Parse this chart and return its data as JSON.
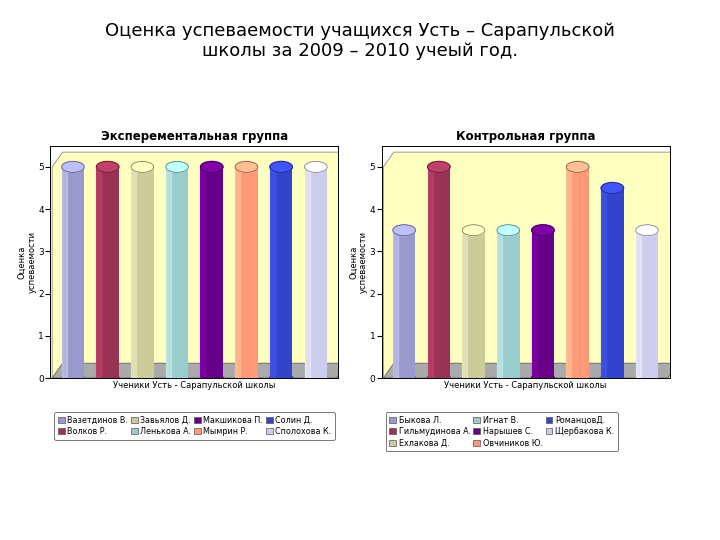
{
  "title": "Оценка успеваемости учащихся Усть – Сарапульской\nшколы за 2009 – 2010 учеый год.",
  "chart1": {
    "title": "Эксперементальная группа",
    "xlabel": "Ученики Усть - Сарапульской школы",
    "ylabel": "Оценка\nуспеваемости",
    "ylim": [
      0,
      5.5
    ],
    "yticks": [
      0,
      1,
      2,
      3,
      4,
      5
    ],
    "values": [
      5,
      5,
      5,
      5,
      5,
      5,
      5,
      5
    ],
    "colors": [
      "#9999CC",
      "#993355",
      "#CCCC99",
      "#99CCCC",
      "#660088",
      "#FF9977",
      "#3344CC",
      "#CCCCEE"
    ],
    "labels": [
      "Вазетдинов В.",
      "Волков Р.",
      "Завьялов Д.",
      "Ленькова А.",
      "Макшикова П.",
      "Мымрин Р.",
      "Солин Д.",
      "Сполохова К."
    ],
    "legend_ncol": 4,
    "legend_labels_row1": [
      "Вазетдинов В.",
      "Волков Р.",
      "Завьялов Д.",
      "Ленькова А."
    ],
    "legend_labels_row2": [
      "Макшикова П.",
      "Мымрин Р.",
      "Солин Д.",
      "Сполохова К."
    ]
  },
  "chart2": {
    "title": "Контрольная группа",
    "xlabel": "Ученики Усть - Сарапульской школы",
    "ylabel": "Оценка\nуспеваемости",
    "ylim": [
      0,
      5.5
    ],
    "yticks": [
      0,
      1,
      2,
      3,
      4,
      5
    ],
    "values": [
      3.5,
      5,
      3.5,
      3.5,
      3.5,
      5,
      4.5,
      3.5
    ],
    "colors": [
      "#9999CC",
      "#993355",
      "#CCCC99",
      "#99CCCC",
      "#660088",
      "#FF9977",
      "#3344CC",
      "#CCCCEE"
    ],
    "labels": [
      "Быкова Л.",
      "Гильмудинова А.",
      "Ехлакова Д.",
      "Игнат В.",
      "Нарышев С.",
      "Овчиников Ю.",
      "РоманцовД.",
      "Щербакова К."
    ],
    "legend_ncol": 3
  },
  "panel_bg": "#ffffff",
  "chart_bg": "#FFFFC0",
  "floor_color": "#AAAAAA",
  "title_fontsize": 13,
  "chart_title_fontsize": 8.5,
  "axis_label_fontsize": 6,
  "tick_fontsize": 6.5,
  "legend_fontsize": 5.8
}
